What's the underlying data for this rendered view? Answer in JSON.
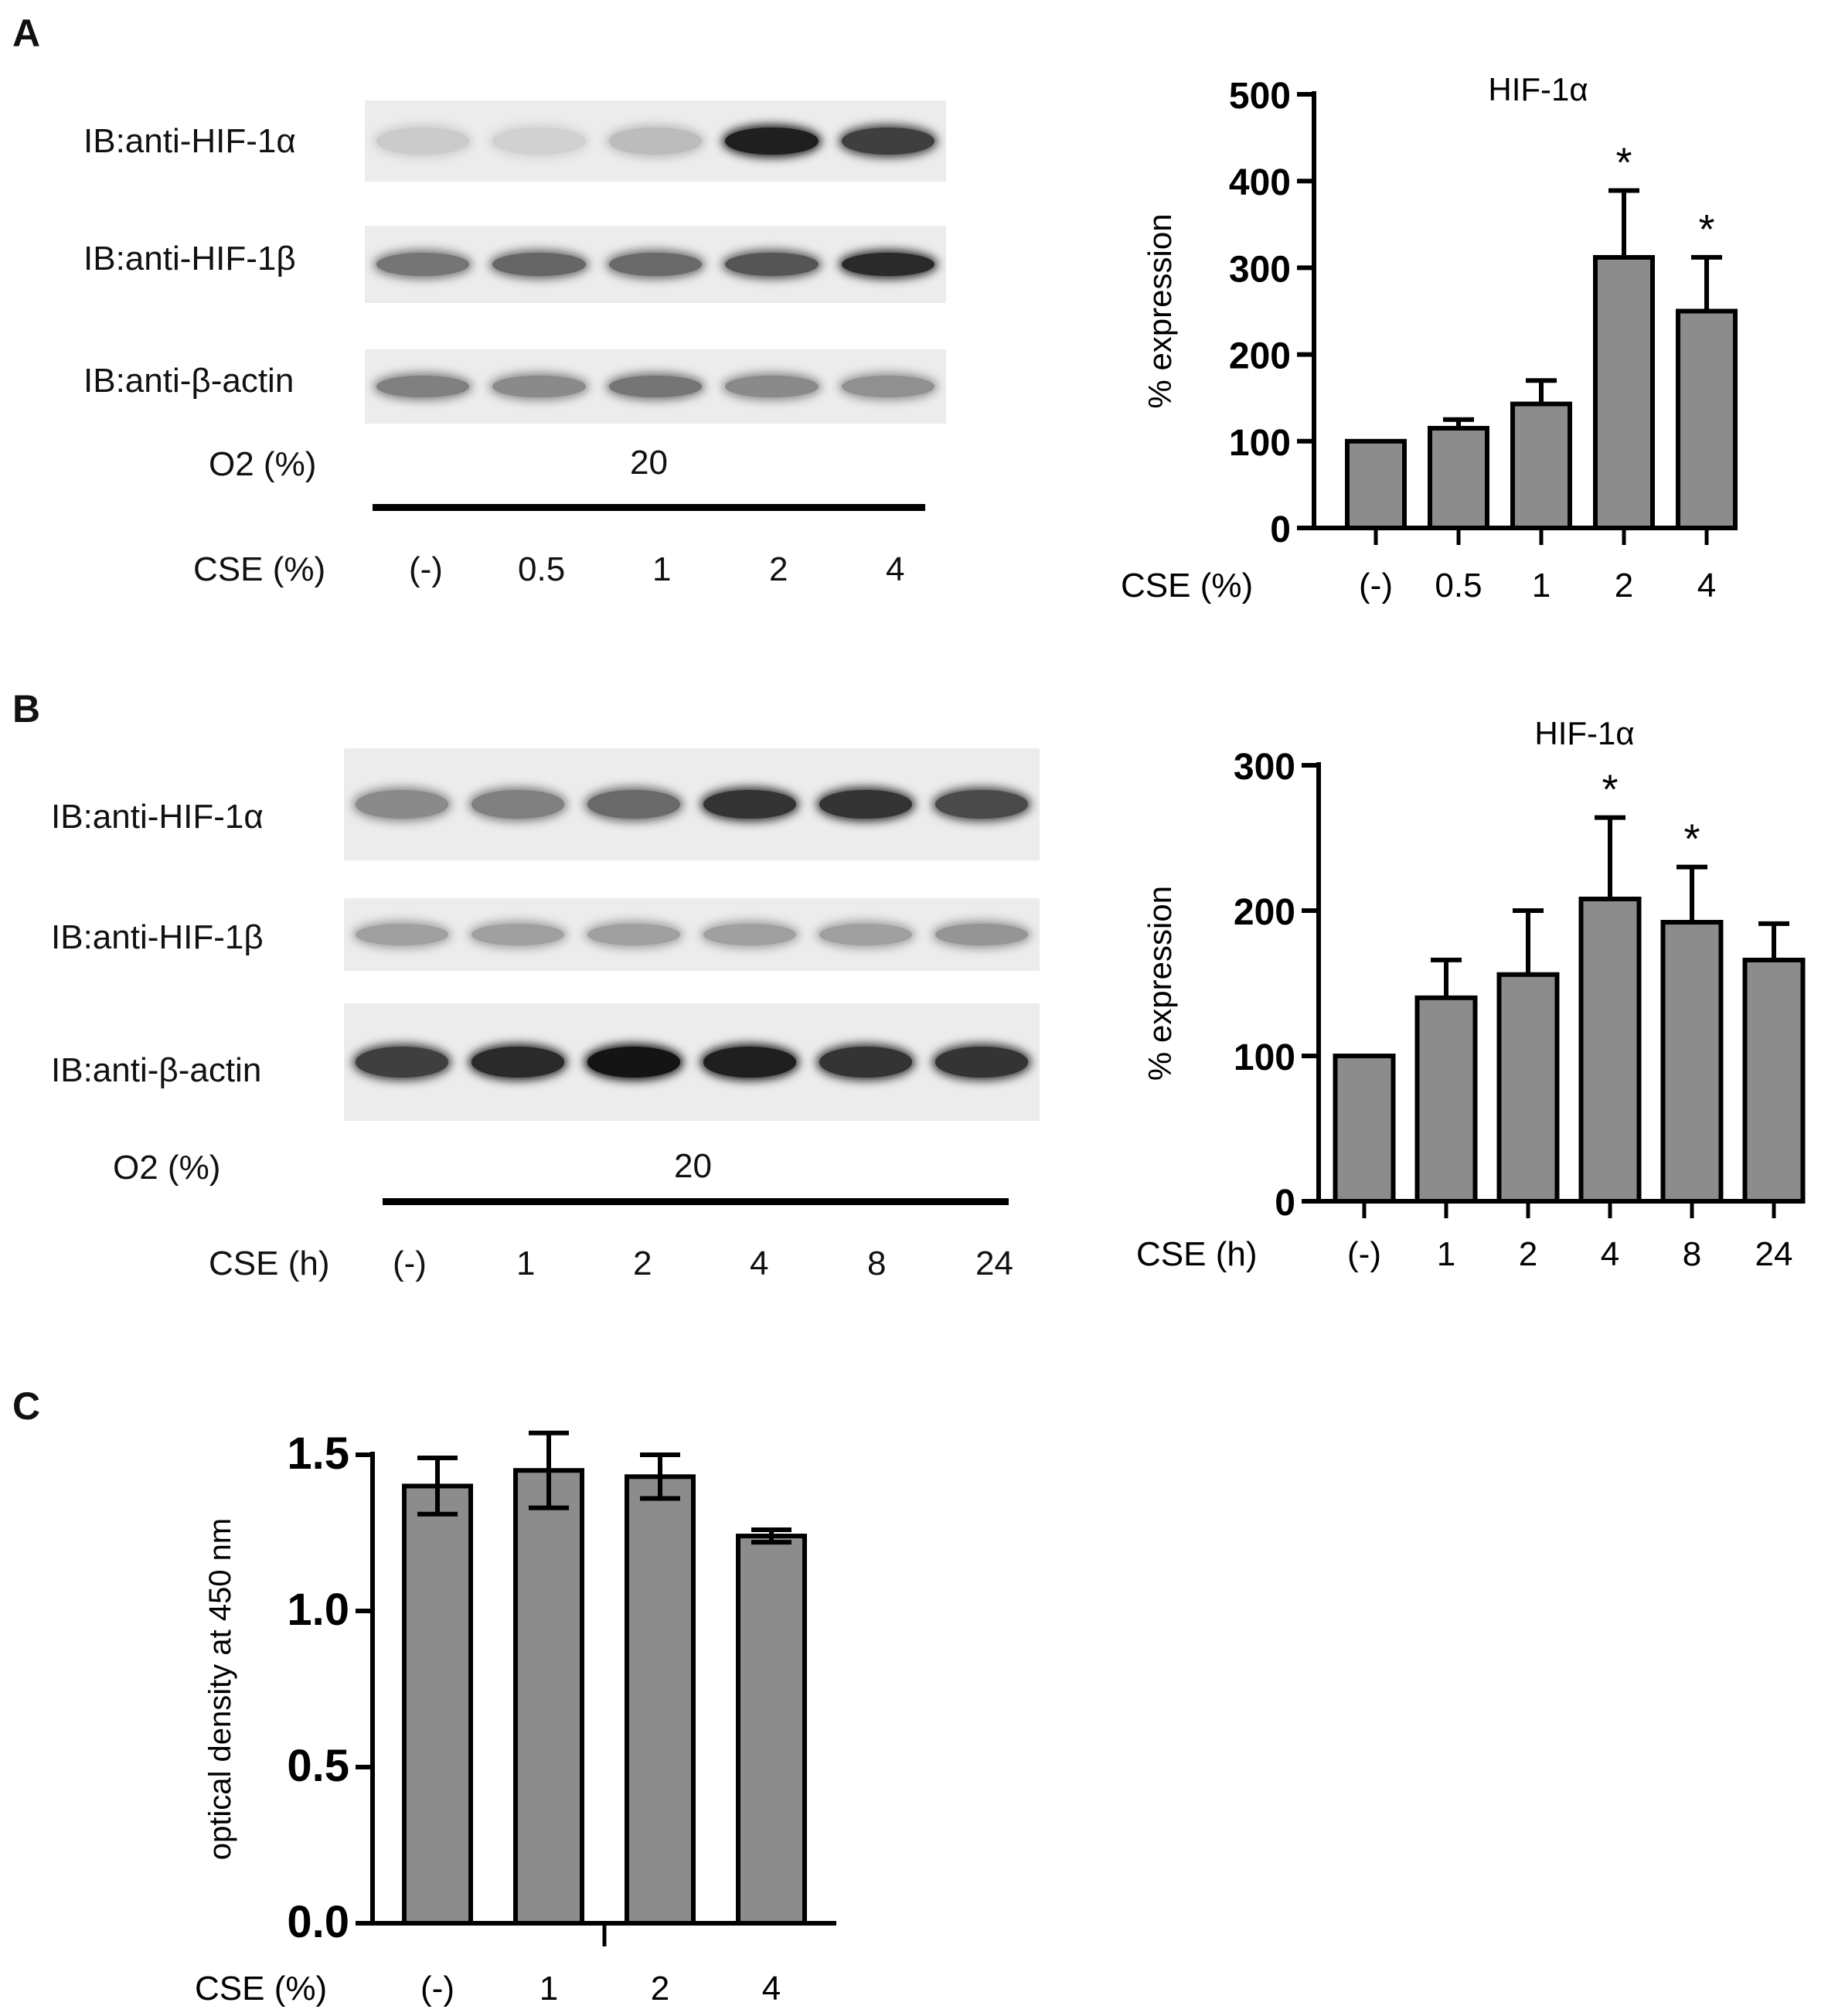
{
  "panels": {
    "A": {
      "letter": "A",
      "blot_labels": [
        "IB:anti-HIF-1α",
        "IB:anti-HIF-1β",
        "IB:anti-β-actin"
      ],
      "o2_label": "O2 (%)",
      "o2_value": "20",
      "cse_label": "CSE (%)",
      "cse_values": [
        "(-)",
        "0.5",
        "1",
        "2",
        "4"
      ],
      "bands": {
        "hif1a": [
          0.15,
          0.12,
          0.22,
          0.95,
          0.8
        ],
        "hif1b": [
          0.55,
          0.62,
          0.6,
          0.7,
          0.9
        ],
        "actin": [
          0.5,
          0.45,
          0.55,
          0.45,
          0.42
        ]
      }
    },
    "B": {
      "letter": "B",
      "blot_labels": [
        "IB:anti-HIF-1α",
        "IB:anti-HIF-1β",
        "IB:anti-β-actin"
      ],
      "o2_label": "O2 (%)",
      "o2_value": "20",
      "cse_label": "CSE (h)",
      "cse_values": [
        "(-)",
        "1",
        "2",
        "4",
        "8",
        "24"
      ],
      "bands": {
        "hif1a": [
          0.45,
          0.5,
          0.6,
          0.85,
          0.85,
          0.75
        ],
        "hif1b": [
          0.35,
          0.35,
          0.35,
          0.35,
          0.35,
          0.4
        ],
        "actin": [
          0.8,
          0.9,
          1.0,
          0.95,
          0.85,
          0.85
        ]
      }
    },
    "C": {
      "letter": "C"
    }
  },
  "chart_data": [
    {
      "type": "bar",
      "title": "HIF-1α",
      "ylabel": "% expression",
      "xlabel": "CSE (%)",
      "categories": [
        "(-)",
        "0.5",
        "1",
        "2",
        "4"
      ],
      "values": [
        100,
        115,
        143,
        312,
        250
      ],
      "errors": [
        0,
        10,
        27,
        77,
        62
      ],
      "significance": [
        "",
        "",
        "",
        "*",
        "*"
      ],
      "ylim": [
        0,
        500
      ],
      "yticks": [
        "0",
        "100",
        "200",
        "300",
        "400",
        "500"
      ],
      "bar_color": "#8c8c8c"
    },
    {
      "type": "bar",
      "title": "HIF-1α",
      "ylabel": "% expression",
      "xlabel": "CSE (h)",
      "categories": [
        "(-)",
        "1",
        "2",
        "4",
        "8",
        "24"
      ],
      "values": [
        100,
        140,
        156,
        208,
        192,
        166
      ],
      "errors": [
        0,
        26,
        44,
        56,
        38,
        25
      ],
      "significance": [
        "",
        "",
        "",
        "*",
        "*",
        ""
      ],
      "ylim": [
        0,
        300
      ],
      "yticks": [
        "0",
        "100",
        "200",
        "300"
      ],
      "bar_color": "#8c8c8c"
    },
    {
      "type": "bar",
      "title": "",
      "ylabel": "optical density at 450 nm",
      "xlabel": "CSE (%)",
      "categories": [
        "(-)",
        "1",
        "2",
        "4"
      ],
      "values": [
        1.4,
        1.45,
        1.43,
        1.24
      ],
      "errors": [
        0.09,
        0.12,
        0.07,
        0.02
      ],
      "significance": [
        "",
        "",
        "",
        ""
      ],
      "ylim": [
        0,
        1.5
      ],
      "yticks": [
        "0.0",
        "0.5",
        "1.0",
        "1.5"
      ],
      "bar_color": "#8c8c8c"
    }
  ]
}
